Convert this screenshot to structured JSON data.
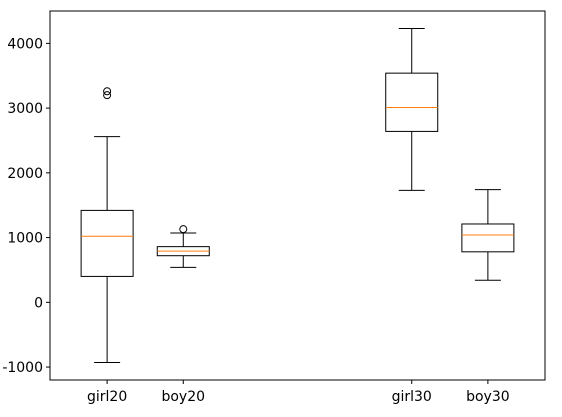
{
  "chart_data": {
    "type": "box",
    "title": "",
    "xlabel": "",
    "ylabel": "",
    "ylim": [
      -1200,
      4500
    ],
    "yticks": [
      -1000,
      0,
      1000,
      2000,
      3000,
      4000
    ],
    "ytick_labels": [
      "-1000",
      "0",
      "1000",
      "2000",
      "3000",
      "4000"
    ],
    "grid": false,
    "colors": {
      "box_edge": "#000000",
      "median": "#ff7f0e",
      "whisker": "#000000",
      "flier_edge": "#000000"
    },
    "categories": [
      "girl20",
      "boy20",
      "girl30",
      "boy30"
    ],
    "x_positions": [
      1,
      2,
      5,
      6
    ],
    "xlim": [
      0.25,
      6.75
    ],
    "boxes": [
      {
        "label": "girl20",
        "whisker_low": -930,
        "q1": 400,
        "median": 1020,
        "q3": 1420,
        "whisker_high": 2560,
        "fliers": [
          3200,
          3260
        ]
      },
      {
        "label": "boy20",
        "whisker_low": 540,
        "q1": 720,
        "median": 790,
        "q3": 860,
        "whisker_high": 1070,
        "fliers": [
          1130
        ]
      },
      {
        "label": "girl30",
        "whisker_low": 1730,
        "q1": 2640,
        "median": 3010,
        "q3": 3540,
        "whisker_high": 4230,
        "fliers": []
      },
      {
        "label": "boy30",
        "whisker_low": 340,
        "q1": 780,
        "median": 1040,
        "q3": 1210,
        "whisker_high": 1740,
        "fliers": []
      }
    ]
  }
}
